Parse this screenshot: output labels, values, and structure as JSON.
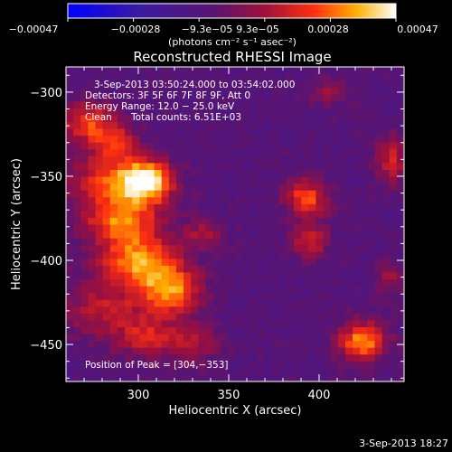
{
  "chart_data": {
    "type": "heatmap",
    "title": "Reconstructed RHESSI Image",
    "xlabel": "Heliocentric X (arcsec)",
    "ylabel": "Heliocentric Y (arcsec)",
    "xlim": [
      260,
      447
    ],
    "ylim": [
      -472,
      -285
    ],
    "xticks": [
      300,
      350,
      400
    ],
    "yticks": [
      -300,
      -350,
      -400,
      -450
    ],
    "grid": false,
    "colormap": "blue-purple-red-yellow-white",
    "colorbar": {
      "range": [
        -0.00047,
        0.00047
      ],
      "tick_labels": [
        "−0.00047",
        "−0.00028",
        "−9.3e−05",
        "9.3e−05",
        "0.00028",
        "0.00047"
      ],
      "unit_label": "(photons cm⁻² s⁻¹ asec⁻²)"
    },
    "annotations": {
      "time_range": "3-Sep-2013 03:50:24.000 to 03:54:02.000",
      "detectors": "Detectors: 3F 5F 6F 7F 8F 9F, Att 0",
      "energy": "Energy Range: 12.0 − 25.0 keV",
      "method": "Clean",
      "counts": "Total counts: 6.51E+03",
      "peak": "Position of Peak = [304,−353]"
    },
    "timestamp": "3-Sep-2013 18:27",
    "sources": [
      {
        "x": 305,
        "y": -353,
        "amp": 0.00047,
        "sx": 10,
        "sy": 9
      },
      {
        "x": 285,
        "y": -352,
        "amp": 0.0003,
        "sx": 16,
        "sy": 10
      },
      {
        "x": 290,
        "y": -375,
        "amp": 0.00036,
        "sx": 14,
        "sy": 10
      },
      {
        "x": 300,
        "y": -400,
        "amp": 0.0004,
        "sx": 15,
        "sy": 12
      },
      {
        "x": 318,
        "y": -418,
        "amp": 0.00038,
        "sx": 12,
        "sy": 10
      },
      {
        "x": 272,
        "y": -318,
        "amp": 0.0003,
        "sx": 10,
        "sy": 9
      },
      {
        "x": 287,
        "y": -330,
        "amp": 0.00024,
        "sx": 9,
        "sy": 8
      },
      {
        "x": 280,
        "y": -430,
        "amp": 0.0002,
        "sx": 15,
        "sy": 12
      },
      {
        "x": 305,
        "y": -445,
        "amp": 0.00022,
        "sx": 12,
        "sy": 9
      },
      {
        "x": 336,
        "y": -384,
        "amp": 0.00018,
        "sx": 8,
        "sy": 6
      },
      {
        "x": 393,
        "y": -363,
        "amp": 0.00034,
        "sx": 8,
        "sy": 8
      },
      {
        "x": 395,
        "y": -388,
        "amp": 0.00025,
        "sx": 7,
        "sy": 7
      },
      {
        "x": 424,
        "y": -448,
        "amp": 0.00042,
        "sx": 9,
        "sy": 8
      },
      {
        "x": 440,
        "y": -340,
        "amp": 0.00024,
        "sx": 6,
        "sy": 10
      },
      {
        "x": 405,
        "y": -300,
        "amp": 0.00015,
        "sx": 7,
        "sy": 6
      },
      {
        "x": 330,
        "y": -450,
        "amp": 0.00018,
        "sx": 10,
        "sy": 8
      },
      {
        "x": 440,
        "y": -410,
        "amp": 0.00016,
        "sx": 6,
        "sy": 7
      }
    ]
  }
}
